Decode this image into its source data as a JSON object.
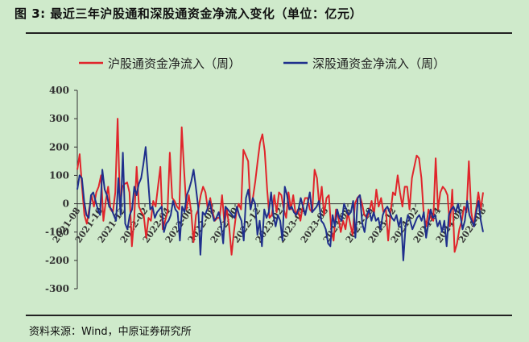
{
  "figure": {
    "title": "图 3:  最近三年沪股通和深股通资金净流入变化（单位：亿元）",
    "source": "资料来源：Wind，中原证券研究所"
  },
  "colors": {
    "background": "#cfeacb",
    "series_red": "#e0252b",
    "series_blue": "#1f2f8c",
    "axis": "#333333"
  },
  "chart_data": {
    "type": "line",
    "title": "",
    "xlabel": "",
    "ylabel": "",
    "ylim": [
      -300,
      400
    ],
    "yticks": [
      -300,
      -200,
      -100,
      0,
      100,
      200,
      300,
      400
    ],
    "xlim": [
      "2021-08",
      "2024-08"
    ],
    "x_tick_labels": [
      "2021-08",
      "2021-10",
      "2021-12",
      "2022-02",
      "2022-04",
      "2022-06",
      "2022-08",
      "2022-10",
      "2022-12",
      "2023-02",
      "2023-04",
      "2023-06",
      "2023-08",
      "2023-10",
      "2023-12",
      "2024-02",
      "2024-04",
      "2024-06",
      "2024-08"
    ],
    "grid": false,
    "legend": "top-center",
    "series": [
      {
        "name": "沪股通资金净流入（周）",
        "color": "#e0252b",
        "values": [
          120,
          175,
          60,
          -40,
          -70,
          -20,
          30,
          -10,
          40,
          60,
          100,
          -60,
          10,
          60,
          -20,
          -30,
          40,
          300,
          -10,
          60,
          70,
          75,
          40,
          -150,
          -50,
          130,
          -10,
          -30,
          -40,
          -120,
          -50,
          -60,
          10,
          -10,
          60,
          130,
          -90,
          -60,
          -30,
          180,
          20,
          10,
          -10,
          -20,
          270,
          120,
          -20,
          30,
          -30,
          -135,
          -40,
          -20,
          30,
          60,
          40,
          -20,
          20,
          -30,
          -60,
          -50,
          -50,
          30,
          -70,
          -20,
          -80,
          -180,
          -100,
          -30,
          0,
          -20,
          190,
          170,
          150,
          -20,
          20,
          80,
          150,
          215,
          245,
          185,
          50,
          -50,
          -40,
          30,
          -30,
          40,
          30,
          -20,
          -50,
          40,
          -20,
          30,
          -40,
          -20,
          -60,
          -10,
          20,
          20,
          -20,
          -30,
          120,
          90,
          -10,
          60,
          -40,
          20,
          30,
          -90,
          -130,
          -20,
          -50,
          -100,
          -60,
          -90,
          -30,
          -70,
          -110,
          0,
          20,
          30,
          0,
          -40,
          -50,
          -30,
          10,
          -40,
          50,
          -10,
          20,
          -30,
          -20,
          -130,
          -30,
          40,
          30,
          100,
          40,
          -10,
          60,
          60,
          -20,
          90,
          130,
          170,
          160,
          90,
          -40,
          -80,
          -20,
          -50,
          -60,
          160,
          -20,
          40,
          60,
          50,
          30,
          -80,
          50,
          -170,
          -140,
          -90,
          -60,
          -10,
          -30,
          150,
          -30,
          -80,
          -20,
          40,
          -20,
          40
        ]
      },
      {
        "name": "深股通资金净流入（周）",
        "color": "#1f2f8c",
        "values": [
          50,
          100,
          90,
          10,
          -40,
          -50,
          30,
          40,
          10,
          -20,
          -40,
          120,
          50,
          30,
          -10,
          -20,
          -40,
          -60,
          90,
          -40,
          180,
          -70,
          -90,
          -40,
          -20,
          60,
          30,
          70,
          90,
          140,
          200,
          90,
          -20,
          -10,
          -50,
          -30,
          -20,
          -10,
          -100,
          -70,
          -60,
          -40,
          10,
          -20,
          -30,
          -130,
          -10,
          -30,
          30,
          50,
          80,
          120,
          60,
          -10,
          -180,
          -30,
          -40,
          -20,
          10,
          -30,
          -60,
          -50,
          -30,
          -70,
          -140,
          -10,
          -20,
          -30,
          -40,
          -50,
          -10,
          -40,
          -60,
          -130,
          20,
          50,
          -20,
          20,
          0,
          -110,
          -60,
          -150,
          -20,
          -50,
          -30,
          40,
          -40,
          -80,
          -40,
          -60,
          -130,
          60,
          30,
          -20,
          -10,
          -30,
          -40,
          -20,
          20,
          -10,
          -40,
          0,
          40,
          -30,
          -20,
          -10,
          10,
          -60,
          -70,
          -90,
          -140,
          -150,
          -40,
          -80,
          -20,
          -50,
          -60,
          0,
          -20,
          -40,
          -30,
          10,
          -120,
          20,
          30,
          -70,
          -100,
          -40,
          -20,
          -60,
          -30,
          -60,
          -50,
          -90,
          -40,
          -20,
          -10,
          -30,
          -50,
          -60,
          -40,
          -80,
          -50,
          -200,
          -80,
          -40,
          -60,
          -90,
          -70,
          -50,
          -40,
          -60,
          -30,
          -120,
          -70,
          -20,
          -50,
          -40,
          -80,
          -60,
          -100,
          -60,
          -150,
          -40,
          -20,
          -10,
          -30,
          0,
          -40,
          -90,
          -60,
          10,
          -40,
          -60,
          -80,
          -30,
          10,
          -60,
          -100
        ]
      }
    ]
  }
}
